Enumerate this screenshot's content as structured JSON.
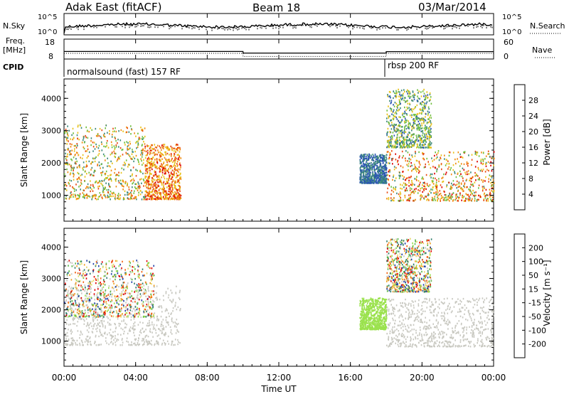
{
  "header": {
    "station": "Adak East (fitACF)",
    "beam": "Beam 18",
    "date": "03/Mar/2014"
  },
  "nsky_panel": {
    "left_label": "N.Sky",
    "right_label": "N.Search",
    "left_ticks": [
      "10^5",
      "10^0"
    ],
    "right_ticks": [
      "10^5",
      "10^0"
    ]
  },
  "freq_panel": {
    "left_label_1": "Freq.",
    "left_label_2": "[MHz]",
    "left_ticks": [
      "18",
      "8"
    ],
    "right_label": "Nave",
    "right_ticks": [
      "60",
      "0"
    ],
    "freq_mhz_segments": [
      {
        "start_h": 0.0,
        "end_h": 10.0,
        "value": 11.3
      },
      {
        "start_h": 10.0,
        "end_h": 18.0,
        "value": 10.2
      },
      {
        "start_h": 18.0,
        "end_h": 24.0,
        "value": 11.2
      }
    ],
    "nave_segments": [
      {
        "start_h": 0.0,
        "end_h": 10.0,
        "value": 15
      },
      {
        "start_h": 10.0,
        "end_h": 18.0,
        "value": 4
      },
      {
        "start_h": 18.0,
        "end_h": 24.0,
        "value": 15
      }
    ]
  },
  "cpid_panel": {
    "label": "CPID",
    "modes": [
      {
        "start_h": 0.0,
        "end_h": 18.0,
        "text": "normalsound (fast) 157 RF"
      },
      {
        "start_h": 18.0,
        "end_h": 24.0,
        "text": "rbsp 200 RF"
      }
    ]
  },
  "time_axis": {
    "label": "Time UT",
    "ticks": [
      "00:00",
      "04:00",
      "08:00",
      "12:00",
      "16:00",
      "20:00",
      "00:00"
    ]
  },
  "power_colorbar": {
    "label": "Power [dB]",
    "tick_labels": [
      "28",
      "24",
      "20",
      "16",
      "12",
      "8",
      "4"
    ],
    "colors": [
      "#0000dd",
      "#2b55b3",
      "#3e8a7a",
      "#6fbf3e",
      "#e8c21a",
      "#f08a10",
      "#e84a10",
      "#dd0000"
    ]
  },
  "velocity_colorbar": {
    "label": "Velocity [m s⁻¹]",
    "tick_labels": [
      "200",
      "100",
      "50",
      "15",
      "-15",
      "-50",
      "-100",
      "-200"
    ],
    "colors": [
      "#1f3fa8",
      "#2f7d6a",
      "#5ab848",
      "#9be24e",
      "#c8c8c0",
      "#e8d86a",
      "#f0a020",
      "#f06010",
      "#e00000"
    ]
  },
  "chart_data": [
    {
      "type": "heatmap",
      "title": "Power",
      "xlabel": "Time UT",
      "ylabel": "Slant Range [km]",
      "xlim": [
        0,
        24
      ],
      "ylim": [
        200,
        4600
      ],
      "y_tick_labels": [
        "1000",
        "2000",
        "3000",
        "4000"
      ],
      "y_ticks": [
        1000,
        2000,
        3000,
        4000
      ],
      "colorbar": "Power [dB]",
      "scatter_regions": [
        {
          "time_h": [
            0.0,
            4.5
          ],
          "range_km": [
            900,
            3200
          ],
          "power_db": [
            8,
            26
          ],
          "note_color": "mixed"
        },
        {
          "time_h": [
            4.5,
            6.5
          ],
          "range_km": [
            900,
            2600
          ],
          "power_db": [
            16,
            30
          ]
        },
        {
          "time_h": [
            16.5,
            18.0
          ],
          "range_km": [
            1400,
            2300
          ],
          "power_db": [
            4,
            12
          ]
        },
        {
          "time_h": [
            18.0,
            24.0
          ],
          "range_km": [
            850,
            2400
          ],
          "power_db": [
            10,
            30
          ]
        },
        {
          "time_h": [
            18.0,
            20.5
          ],
          "range_km": [
            2500,
            4300
          ],
          "power_db": [
            6,
            20
          ]
        }
      ]
    },
    {
      "type": "heatmap",
      "title": "Velocity",
      "xlabel": "Time UT",
      "ylabel": "Slant Range [km]",
      "xlim": [
        0,
        24
      ],
      "ylim": [
        200,
        4600
      ],
      "y_tick_labels": [
        "1000",
        "2000",
        "3000",
        "4000"
      ],
      "y_ticks": [
        1000,
        2000,
        3000,
        4000
      ],
      "colorbar": "Velocity [m s⁻¹]",
      "scatter_regions": [
        {
          "time_h": [
            0.0,
            6.5
          ],
          "range_km": [
            900,
            2800
          ],
          "velocity_ms": [
            -15,
            15
          ]
        },
        {
          "time_h": [
            0.0,
            5.0
          ],
          "range_km": [
            1800,
            3600
          ],
          "velocity_ms": [
            -200,
            200
          ]
        },
        {
          "time_h": [
            16.5,
            18.0
          ],
          "range_km": [
            1400,
            2400
          ],
          "velocity_ms": [
            30,
            60
          ]
        },
        {
          "time_h": [
            18.0,
            24.0
          ],
          "range_km": [
            850,
            2400
          ],
          "velocity_ms": [
            -15,
            15
          ]
        },
        {
          "time_h": [
            18.0,
            20.5
          ],
          "range_km": [
            2600,
            4300
          ],
          "velocity_ms": [
            -200,
            200
          ]
        }
      ]
    }
  ]
}
